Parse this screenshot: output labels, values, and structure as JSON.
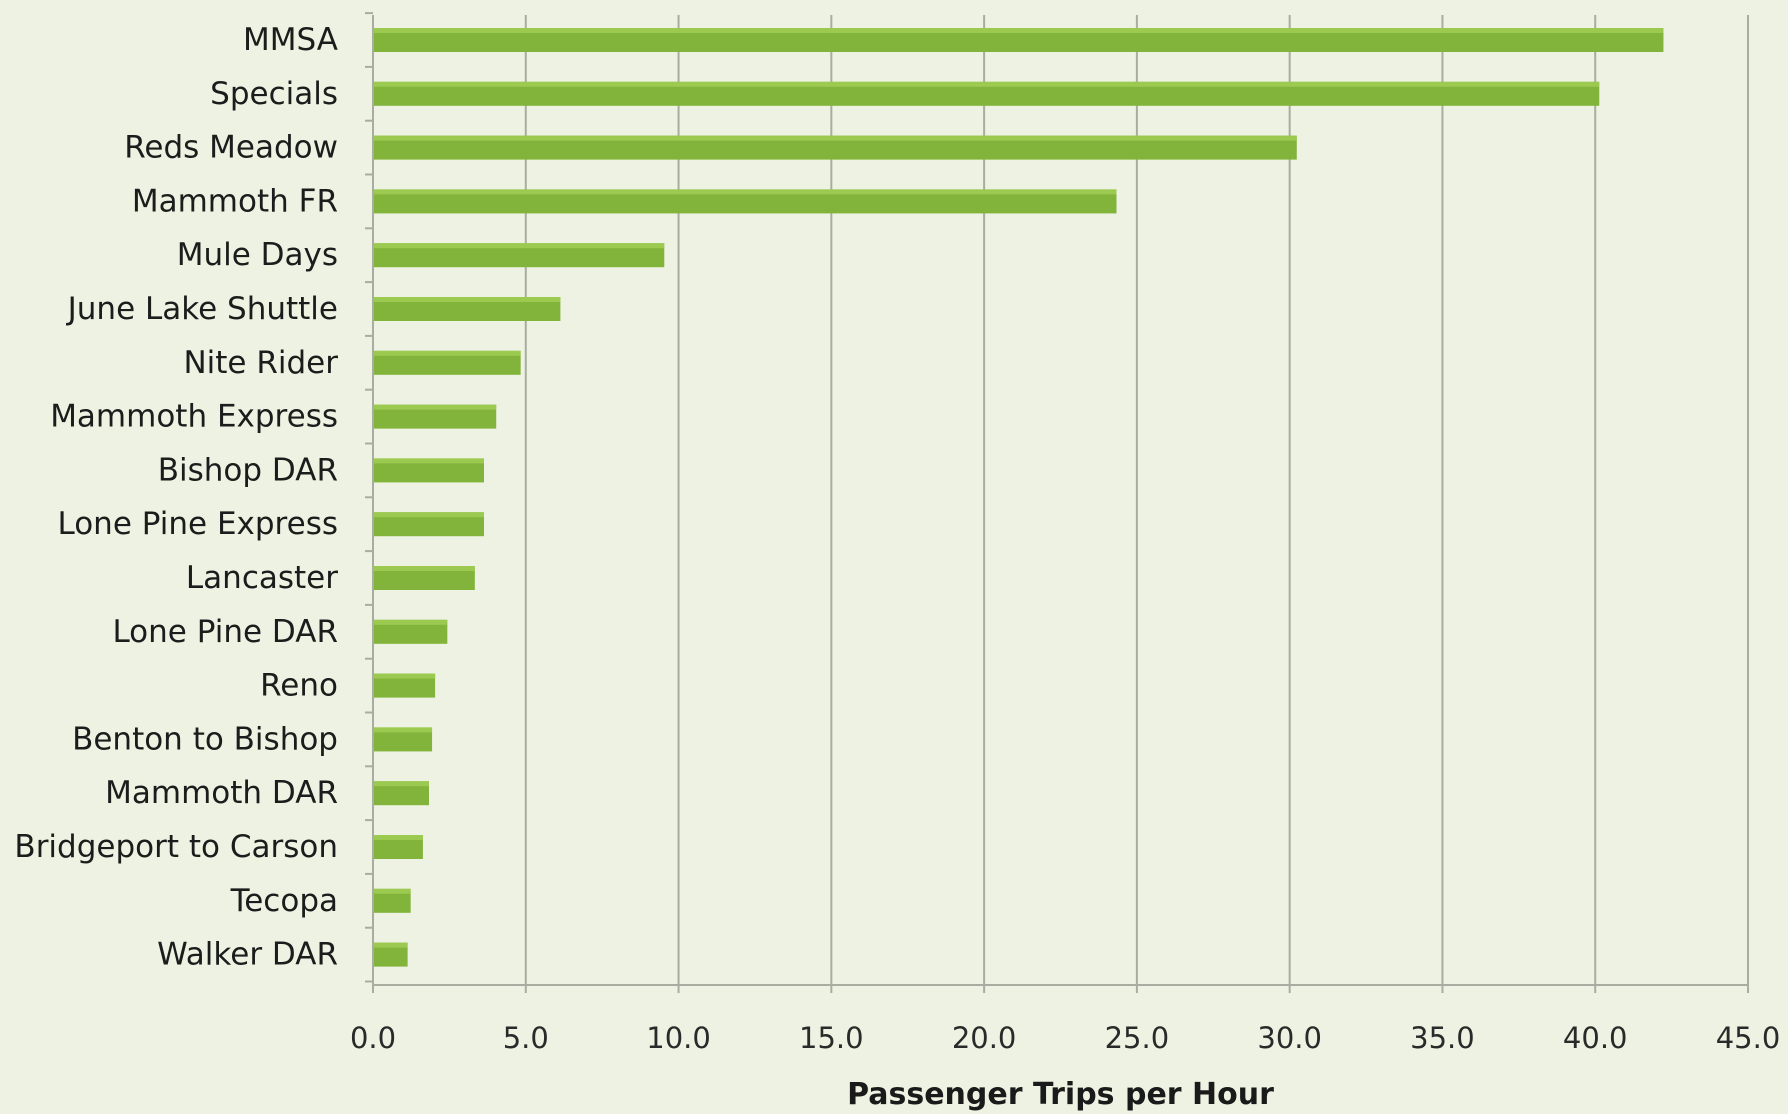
{
  "chart_data": {
    "type": "bar",
    "orientation": "horizontal",
    "categories": [
      "MMSA",
      "Specials",
      "Reds Meadow",
      "Mammoth FR",
      "Mule Days",
      "June Lake Shuttle",
      "Nite Rider",
      "Mammoth Express",
      "Bishop DAR",
      "Lone Pine Express",
      "Lancaster",
      "Lone Pine DAR",
      "Reno",
      "Benton to Bishop",
      "Mammoth DAR",
      "Bridgeport to Carson",
      "Tecopa",
      "Walker DAR"
    ],
    "values": [
      42.2,
      40.1,
      30.2,
      24.3,
      9.5,
      6.1,
      4.8,
      4.0,
      3.6,
      3.6,
      3.3,
      2.4,
      2.0,
      1.9,
      1.8,
      1.6,
      1.2,
      1.1
    ],
    "xlabel": "Passenger Trips per Hour",
    "xlim": [
      0,
      45
    ],
    "xticks": [
      0,
      5,
      10,
      15,
      20,
      25,
      30,
      35,
      40,
      45
    ],
    "tick_labels": [
      "0.0",
      "5.0",
      "10.0",
      "15.0",
      "20.0",
      "25.0",
      "30.0",
      "35.0",
      "40.0",
      "45.0"
    ],
    "grid": "vertical",
    "legend": "none",
    "colors": {
      "bar": "#82b33a",
      "bar_highlight": "#a3cf58",
      "grid": "#a9aca0",
      "background": "#eef2e2"
    }
  }
}
